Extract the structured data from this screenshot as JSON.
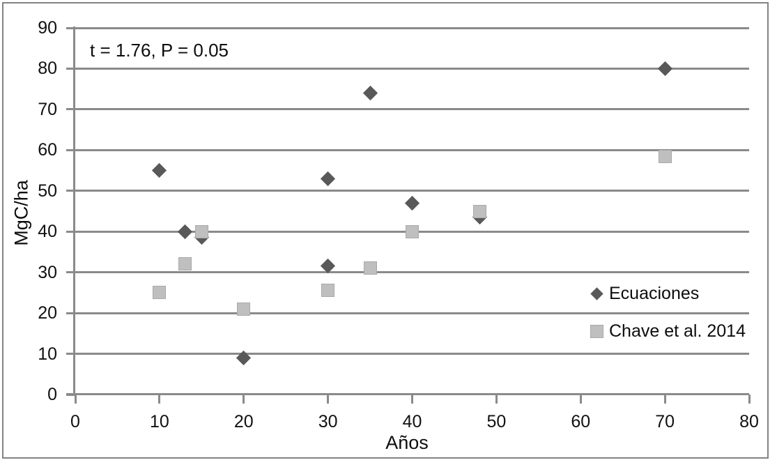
{
  "chart_data": {
    "type": "scatter",
    "annotation": "t = 1.76, P = 0.05",
    "xlabel": "Años",
    "ylabel": "MgC/ha",
    "xlim": [
      0,
      80
    ],
    "ylim": [
      0,
      90
    ],
    "x_ticks": [
      0,
      10,
      20,
      30,
      40,
      50,
      60,
      70,
      80
    ],
    "y_ticks": [
      0,
      10,
      20,
      30,
      40,
      50,
      60,
      70,
      80,
      90
    ],
    "grid": "horizontal-only",
    "legend_position": "inside-right",
    "series": [
      {
        "name": "Ecuaciones",
        "marker": "diamond",
        "color": "#595959",
        "points": [
          [
            10,
            55
          ],
          [
            13,
            40
          ],
          [
            15,
            38.5
          ],
          [
            20,
            9
          ],
          [
            30,
            53
          ],
          [
            30,
            31.5
          ],
          [
            35,
            74
          ],
          [
            40,
            47
          ],
          [
            48,
            43.5
          ],
          [
            70,
            80
          ]
        ]
      },
      {
        "name": "Chave et al. 2014",
        "marker": "square",
        "color": "#bfbfbf",
        "points": [
          [
            10,
            25
          ],
          [
            13,
            32
          ],
          [
            15,
            40
          ],
          [
            20,
            21
          ],
          [
            30,
            25.5
          ],
          [
            35,
            31
          ],
          [
            40,
            40
          ],
          [
            48,
            45
          ],
          [
            70,
            58.5
          ]
        ]
      }
    ]
  },
  "colors": {
    "gridline": "#8a8a8a",
    "axis": "#8a8a8a",
    "frame_border": "#828282",
    "text": "#111111",
    "diamond_series": "#595959",
    "square_series": "#bfbfbf"
  }
}
